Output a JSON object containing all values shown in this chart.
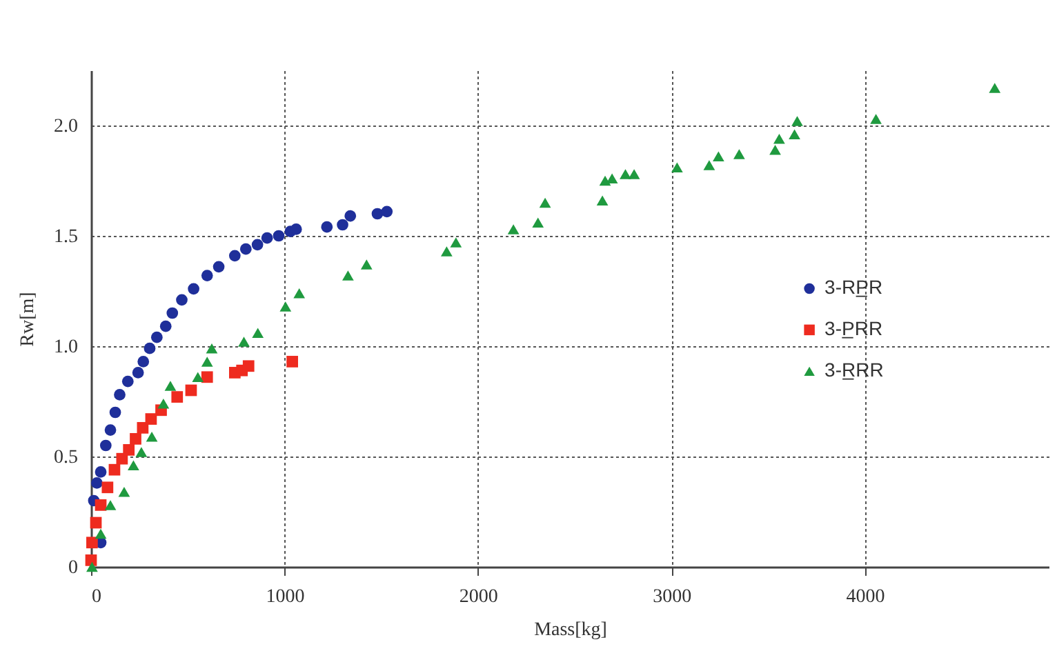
{
  "chart_data": {
    "type": "scatter",
    "xlabel": "Mass[kg]",
    "ylabel": "Rw[m]",
    "xlim": [
      0,
      4950
    ],
    "ylim": [
      0,
      2.25
    ],
    "xticks": [
      0,
      1000,
      2000,
      3000,
      4000
    ],
    "yticks": [
      0,
      0.5,
      {
        "value": 1,
        "label": "1.0"
      },
      1.5,
      {
        "value": 2,
        "label": "2.0"
      }
    ],
    "grid": true,
    "legend": "right",
    "series": [
      {
        "name": "3-RP̲R",
        "color": "#1f2f9a",
        "marker": "circle",
        "x": [
          50,
          14,
          30,
          50,
          76,
          100,
          125,
          148,
          190,
          243,
          270,
          303,
          340,
          386,
          420,
          469,
          530,
          600,
          660,
          743,
          800,
          860,
          910,
          970,
          1030,
          1060,
          1219,
          1300,
          1340,
          1480,
          1529
        ],
        "values": [
          0.11,
          0.3,
          0.38,
          0.43,
          0.55,
          0.62,
          0.7,
          0.78,
          0.84,
          0.88,
          0.93,
          0.99,
          1.04,
          1.09,
          1.15,
          1.21,
          1.26,
          1.32,
          1.36,
          1.41,
          1.44,
          1.46,
          1.49,
          1.5,
          1.52,
          1.53,
          1.54,
          1.55,
          1.59,
          1.6,
          1.61
        ]
      },
      {
        "name": "3-P̲RR",
        "color": "#ee2b1f",
        "marker": "square",
        "x": [
          0,
          5,
          25,
          50,
          85,
          121,
          160,
          195,
          230,
          267,
          310,
          362,
          445,
          517,
          600,
          743,
          780,
          814,
          1040
        ],
        "values": [
          0.03,
          0.11,
          0.2,
          0.28,
          0.36,
          0.44,
          0.49,
          0.53,
          0.58,
          0.63,
          0.67,
          0.71,
          0.77,
          0.8,
          0.86,
          0.88,
          0.89,
          0.91,
          0.93
        ]
      },
      {
        "name": "3-R̲RR",
        "color": "#1f9a3f",
        "marker": "triangle",
        "x": [
          5,
          50,
          100,
          171,
          219,
          260,
          314,
          374,
          410,
          552,
          600,
          624,
          790,
          862,
          1005,
          1076,
          1328,
          1424,
          1838,
          1886,
          2183,
          2310,
          2347,
          2643,
          2657,
          2693,
          2762,
          2807,
          3029,
          3195,
          3243,
          3350,
          3536,
          3557,
          3636,
          3650,
          4057,
          4671
        ],
        "values": [
          0.0,
          0.15,
          0.28,
          0.34,
          0.46,
          0.52,
          0.59,
          0.74,
          0.82,
          0.86,
          0.93,
          0.99,
          1.02,
          1.06,
          1.18,
          1.24,
          1.32,
          1.37,
          1.43,
          1.47,
          1.53,
          1.56,
          1.65,
          1.66,
          1.75,
          1.76,
          1.78,
          1.78,
          1.81,
          1.82,
          1.86,
          1.87,
          1.89,
          1.94,
          1.96,
          2.02,
          2.03,
          2.17
        ]
      }
    ]
  }
}
